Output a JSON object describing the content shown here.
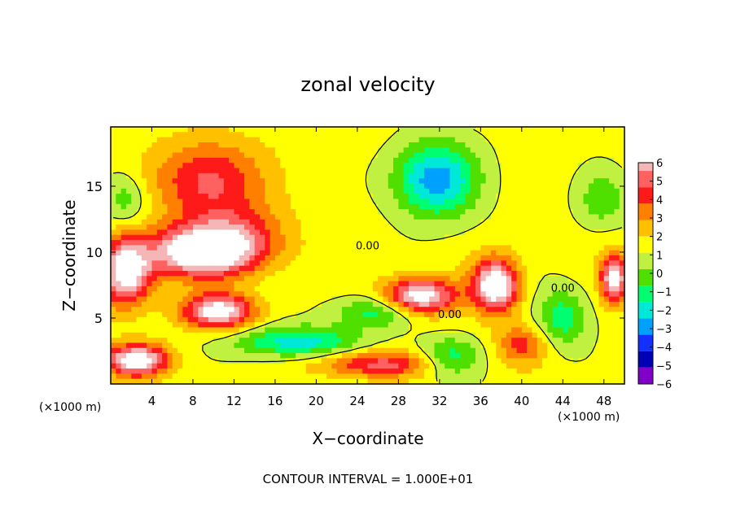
{
  "chart_data": {
    "type": "heatmap",
    "title": "zonal velocity",
    "xlabel": "X−coordinate",
    "ylabel": "Z−coordinate",
    "x_unit_left": "(×1000 m)",
    "x_unit_right": "(×1000 m)",
    "xlim": [
      0,
      50
    ],
    "ylim": [
      0,
      19.5
    ],
    "x_ticks": [
      4,
      8,
      12,
      16,
      20,
      24,
      28,
      32,
      36,
      40,
      44,
      48
    ],
    "y_ticks": [
      5,
      10,
      15
    ],
    "footer": "CONTOUR INTERVAL = 1.000E+01",
    "contour_labels": [
      {
        "text": "0.00",
        "x": 25,
        "z": 10.2
      },
      {
        "text": "0.00",
        "x": 33,
        "z": 5.0
      },
      {
        "text": "0.00",
        "x": 44,
        "z": 7.0
      }
    ],
    "colorbar": {
      "min": -6,
      "max": 6,
      "ticks": [
        "6",
        "5",
        "4",
        "3",
        "2",
        "1",
        "0",
        "−1",
        "−2",
        "−3",
        "−4",
        "−5",
        "−6"
      ],
      "bins": [
        "#f4b6b6",
        "#ff6060",
        "#ff1a1a",
        "#ff7f00",
        "#ffc000",
        "#ffff00",
        "#c0f040",
        "#50e000",
        "#00ff70",
        "#00e8d8",
        "#00a0ff",
        "#1430ff",
        "#0000b4",
        "#8000c8"
      ]
    },
    "features": [
      {
        "kind": "max",
        "x": 9.5,
        "z": 15.5,
        "value": 4.0,
        "sx": 5,
        "sz": 3
      },
      {
        "kind": "max",
        "x": 8.5,
        "z": 10,
        "value": 6.8,
        "sx": 5,
        "sz": 1.8
      },
      {
        "kind": "max",
        "x": 12,
        "z": 11,
        "value": 3.5,
        "sx": 5,
        "sz": 2.5
      },
      {
        "kind": "max",
        "x": 10.5,
        "z": 5.5,
        "value": 6.5,
        "sx": 3.5,
        "sz": 1.3
      },
      {
        "kind": "max",
        "x": 1.5,
        "z": 8.5,
        "value": 7.0,
        "sx": 2.5,
        "sz": 2.5
      },
      {
        "kind": "max",
        "x": 2.5,
        "z": 1.8,
        "value": 7.0,
        "sx": 3,
        "sz": 1.2
      },
      {
        "kind": "max",
        "x": 30,
        "z": 6.5,
        "value": 7.5,
        "sx": 3.5,
        "sz": 1.5
      },
      {
        "kind": "max",
        "x": 37.5,
        "z": 7.5,
        "value": 7.5,
        "sx": 2.2,
        "sz": 2
      },
      {
        "kind": "max",
        "x": 49,
        "z": 8,
        "value": 6.5,
        "sx": 1.3,
        "sz": 1.8
      },
      {
        "kind": "max",
        "x": 40,
        "z": 3,
        "value": 3.0,
        "sx": 2.5,
        "sz": 1.5
      },
      {
        "kind": "min",
        "x": 31.5,
        "z": 15.5,
        "value": -5.0,
        "sx": 4,
        "sz": 2.8
      },
      {
        "kind": "min",
        "x": 27,
        "z": 5.5,
        "value": -3.5,
        "sx": 5,
        "sz": 1.2
      },
      {
        "kind": "min",
        "x": 18,
        "z": 3.2,
        "value": -4.0,
        "sx": 6,
        "sz": 1.2
      },
      {
        "kind": "min",
        "x": 44,
        "z": 5,
        "value": -3.0,
        "sx": 2.5,
        "sz": 2.2
      },
      {
        "kind": "min",
        "x": 48,
        "z": 14,
        "value": -2.0,
        "sx": 2.5,
        "sz": 2
      },
      {
        "kind": "min",
        "x": 1.5,
        "z": 14,
        "value": -2.0,
        "sx": 2,
        "sz": 2
      },
      {
        "kind": "min",
        "x": 33,
        "z": 2,
        "value": -3.0,
        "sx": 3,
        "sz": 1.5
      },
      {
        "kind": "max",
        "x": 26,
        "z": 1.5,
        "value": 4.0,
        "sx": 6,
        "sz": 1.0
      }
    ]
  }
}
